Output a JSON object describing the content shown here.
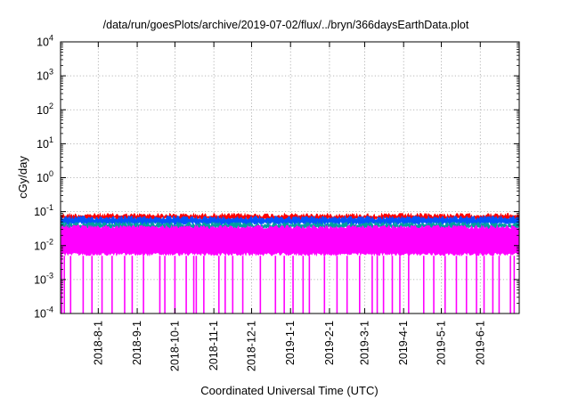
{
  "chart_data": {
    "type": "line",
    "title": "/data/run/goesPlots/archive/2019-07-02/flux/../bryn/366daysEarthData.plot",
    "xlabel": "Coordinated Universal Time (UTC)",
    "ylabel": "cGy/day",
    "yscale": "log",
    "ylim": [
      0.0001,
      10000
    ],
    "xlim": [
      "2018-07-02",
      "2019-07-02"
    ],
    "grid": true,
    "legend": "none",
    "y_ticks": [
      {
        "base": "10",
        "exp": "-4"
      },
      {
        "base": "10",
        "exp": "-3"
      },
      {
        "base": "10",
        "exp": "-2"
      },
      {
        "base": "10",
        "exp": "-1"
      },
      {
        "base": "10",
        "exp": "0"
      },
      {
        "base": "10",
        "exp": "1"
      },
      {
        "base": "10",
        "exp": "2"
      },
      {
        "base": "10",
        "exp": "3"
      },
      {
        "base": "10",
        "exp": "4"
      }
    ],
    "x_ticks": [
      {
        "label": "2018-8-1",
        "date": "2018-08-01"
      },
      {
        "label": "2018-9-1",
        "date": "2018-09-01"
      },
      {
        "label": "2018-10-1",
        "date": "2018-10-01"
      },
      {
        "label": "2018-11-1",
        "date": "2018-11-01"
      },
      {
        "label": "2018-12-1",
        "date": "2018-12-01"
      },
      {
        "label": "2019-1-1",
        "date": "2019-01-01"
      },
      {
        "label": "2019-2-1",
        "date": "2019-02-01"
      },
      {
        "label": "2019-3-1",
        "date": "2019-03-01"
      },
      {
        "label": "2019-4-1",
        "date": "2019-04-01"
      },
      {
        "label": "2019-5-1",
        "date": "2019-05-01"
      },
      {
        "label": "2019-6-1",
        "date": "2019-06-01"
      }
    ],
    "series": [
      {
        "color": "#ff0000",
        "band_low": 0.055,
        "band_high": 0.09
      },
      {
        "color": "#0055ff",
        "band_low": 0.04,
        "band_high": 0.075
      },
      {
        "color": "#00a0a0",
        "band_low": 0.03,
        "band_high": 0.05
      },
      {
        "color": "#ff00ff",
        "band_low": 0.005,
        "band_high": 0.04
      }
    ],
    "dropout_dates": [
      "2018-07-03",
      "2018-07-05",
      "2018-07-10",
      "2018-07-20",
      "2018-07-27",
      "2018-08-04",
      "2018-08-12",
      "2018-08-22",
      "2018-08-28",
      "2018-09-06",
      "2018-09-19",
      "2018-09-23",
      "2018-10-01",
      "2018-10-10",
      "2018-10-16",
      "2018-10-18",
      "2018-10-24",
      "2018-11-05",
      "2018-11-10",
      "2018-11-16",
      "2018-11-24",
      "2018-12-08",
      "2018-12-20",
      "2018-12-27",
      "2019-01-03",
      "2019-01-11",
      "2019-01-16",
      "2019-01-28",
      "2019-02-07",
      "2019-02-15",
      "2019-02-25",
      "2019-03-07",
      "2019-03-11",
      "2019-03-16",
      "2019-03-23",
      "2019-03-29",
      "2019-04-05",
      "2019-04-17",
      "2019-04-25",
      "2019-05-04",
      "2019-05-13",
      "2019-05-21",
      "2019-05-29",
      "2019-06-04",
      "2019-06-11",
      "2019-06-16",
      "2019-06-25",
      "2019-06-28"
    ],
    "dropout_low": 0.0001,
    "dropout_high": 0.005
  }
}
